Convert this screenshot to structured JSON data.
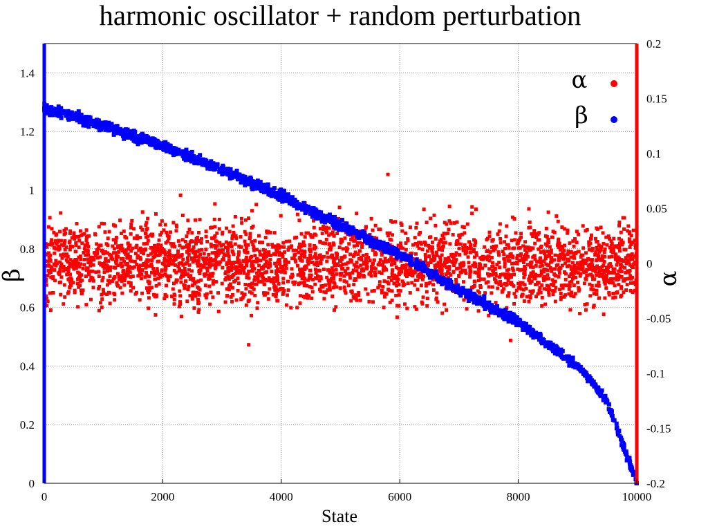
{
  "chart_data": {
    "type": "scatter",
    "title": "harmonic oscillator + random perturbation",
    "xlabel": "State",
    "ylabel": "β",
    "y2label": "α",
    "xlim": [
      0,
      10000
    ],
    "ylim": [
      0,
      1.5
    ],
    "y2lim": [
      -0.2,
      0.2
    ],
    "x_ticks": [
      0,
      2000,
      4000,
      6000,
      8000,
      10000
    ],
    "x_tick_labels": [
      "0",
      "2000",
      "4000",
      "6000",
      "8000",
      "10000"
    ],
    "y_ticks": [
      0,
      0.2,
      0.4,
      0.6,
      0.8,
      1.0,
      1.2,
      1.4
    ],
    "y_tick_labels": [
      "0",
      "0.2",
      "0.4",
      "0.6",
      "0.8",
      "1",
      "1.2",
      "1.4"
    ],
    "y2_ticks": [
      -0.2,
      -0.15,
      -0.1,
      -0.05,
      0,
      0.05,
      0.1,
      0.15,
      0.2
    ],
    "y2_tick_labels": [
      "-0.2",
      "-0.15",
      "-0.1",
      "-0.05",
      "0",
      "0.05",
      "0.1",
      "0.15",
      "0.2"
    ],
    "grid": true,
    "legend_position": "top-right",
    "series": [
      {
        "name": "α",
        "axis": "right",
        "color": "#ff0000",
        "description_of_trend": "noise centered at 0 with spread about ±0.03",
        "x": [
          0,
          500,
          1000,
          1500,
          2000,
          2500,
          3000,
          3500,
          4000,
          4500,
          5000,
          5500,
          6000,
          6500,
          7000,
          7500,
          8000,
          8500,
          9000,
          9500,
          10000
        ],
        "values": [
          0.0,
          0.01,
          -0.01,
          0.005,
          0.0,
          -0.005,
          0.01,
          0.0,
          -0.01,
          0.005,
          0.0,
          0.01,
          -0.005,
          0.0,
          0.005,
          -0.01,
          0.0,
          0.01,
          -0.005,
          0.0,
          0.0
        ],
        "outliers": [
          [
            5800,
            0.081
          ],
          [
            3450,
            -0.074
          ],
          [
            7870,
            -0.07
          ],
          [
            2300,
            0.062
          ],
          [
            4400,
            0.055
          ]
        ]
      },
      {
        "name": "β",
        "axis": "left",
        "color": "#0000ff",
        "description_of_trend": "decreasing from about 1.28 to 0 following sqrt-like curve",
        "x": [
          0,
          1000,
          2000,
          3000,
          4000,
          5000,
          6000,
          7000,
          8000,
          9000,
          9500,
          10000
        ],
        "values": [
          1.28,
          1.22,
          1.15,
          1.07,
          0.98,
          0.88,
          0.78,
          0.66,
          0.55,
          0.4,
          0.28,
          0.0
        ]
      }
    ]
  }
}
